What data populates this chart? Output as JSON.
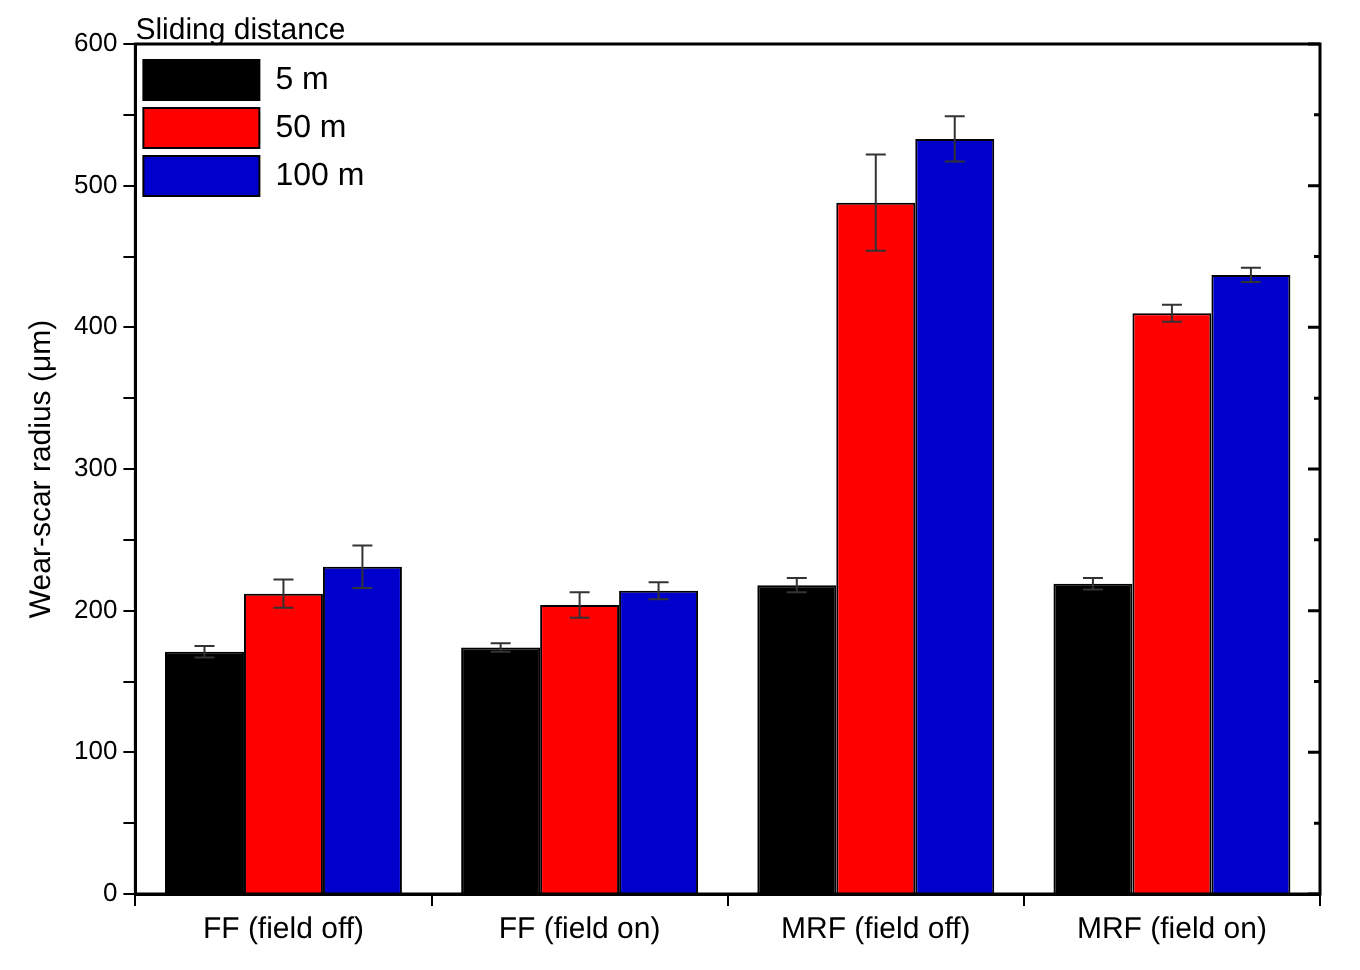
{
  "chart_data": {
    "type": "bar",
    "ylabel": "Wear-scar radius (μm)",
    "legend_title": "Sliding distance",
    "legend": "top left",
    "grid": false,
    "categories": [
      "FF (field off)",
      "FF (field on)",
      "MRF (field off)",
      "MRF (field on)"
    ],
    "series": [
      {
        "name": "5 m",
        "color": "#000000",
        "values": [
          171,
          174,
          218,
          219
        ],
        "errors": [
          4,
          3,
          5,
          4
        ]
      },
      {
        "name": "50 m",
        "color": "#ff0000",
        "values": [
          212,
          204,
          488,
          410
        ],
        "errors": [
          10,
          9,
          34,
          6
        ]
      },
      {
        "name": "100 m",
        "color": "#0000cc",
        "values": [
          231,
          214,
          533,
          437
        ],
        "errors": [
          15,
          6,
          16,
          5
        ]
      }
    ],
    "ylim": [
      0,
      600
    ],
    "yticks": [
      0,
      {
        "value": 50,
        "label": null
      },
      100,
      {
        "value": 150,
        "label": null
      },
      200,
      {
        "value": 250,
        "label": null
      },
      300,
      {
        "value": 350,
        "label": null
      },
      400,
      {
        "value": 450,
        "label": null
      },
      500,
      {
        "value": 550,
        "label": null
      },
      600
    ]
  }
}
